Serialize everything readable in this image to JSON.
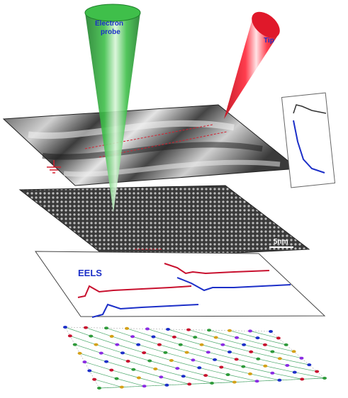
{
  "labels": {
    "electron_probe_line1": "Electron",
    "electron_probe_line2": "probe",
    "tip": "Tip",
    "scale_bar": "5nm",
    "eels": "EELS",
    "inset_legend": "",
    "inset_xlabel": ""
  },
  "colors": {
    "probe_green": "#2e9a3a",
    "tip_red": "#e0182a",
    "eels_red": "#c8102e",
    "eels_blue": "#1c2fc8",
    "lattice_line": "#4aa86a"
  },
  "icons": {
    "ground": "ground-symbol-icon"
  },
  "panels": [
    "stm-topography-layer",
    "atomic-resolution-layer",
    "eels-spectra-layer",
    "crystal-lattice-layer"
  ]
}
